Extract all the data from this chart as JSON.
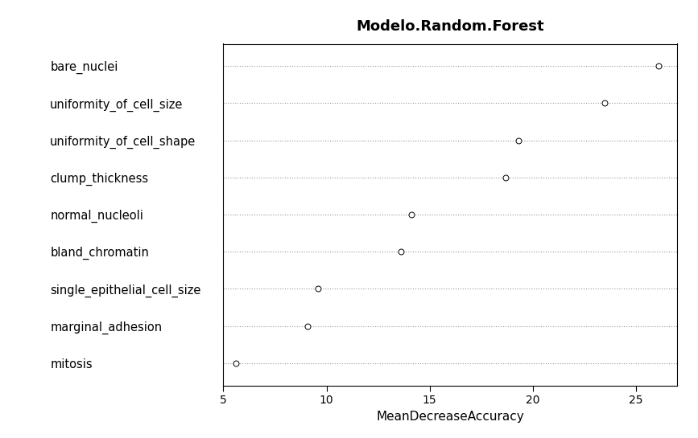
{
  "title": "Modelo.Random.Forest",
  "xlabel": "MeanDecreaseAccuracy",
  "variables": [
    "bare_nuclei",
    "uniformity_of_cell_size",
    "uniformity_of_cell_shape",
    "clump_thickness",
    "normal_nucleoli",
    "bland_chromatin",
    "single_epithelial_cell_size",
    "marginal_adhesion",
    "mitosis"
  ],
  "values": [
    26.1,
    23.5,
    19.3,
    18.7,
    14.1,
    13.6,
    9.6,
    9.1,
    5.6
  ],
  "xlim": [
    5,
    27
  ],
  "xticks": [
    5,
    10,
    15,
    20,
    25
  ],
  "dot_color": "white",
  "dot_edgecolor": "black",
  "dot_size": 25,
  "dot_linewidth": 0.7,
  "grid_color": "#999999",
  "grid_linestyle": ":",
  "grid_linewidth": 0.8,
  "background_color": "white",
  "title_fontsize": 13,
  "label_fontsize": 11,
  "tick_fontsize": 10,
  "ytick_fontsize": 10.5
}
